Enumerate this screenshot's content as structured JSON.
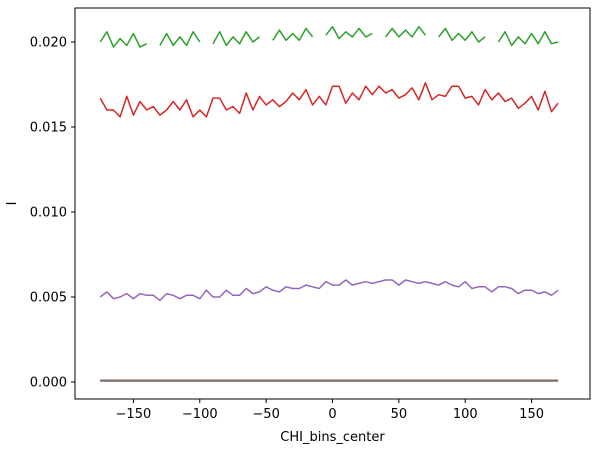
{
  "chart_data": {
    "type": "line",
    "title": "",
    "xlabel": "CHI_bins_center",
    "ylabel": "I",
    "xlim": [
      -194,
      194
    ],
    "ylim": [
      -0.001,
      0.022
    ],
    "x_ticks": [
      -150,
      -100,
      -50,
      0,
      50,
      100,
      150
    ],
    "x_tick_labels": [
      "−150",
      "−100",
      "−50",
      "0",
      "50",
      "100",
      "150"
    ],
    "y_ticks": [
      0.0,
      0.005,
      0.01,
      0.015,
      0.02
    ],
    "y_tick_labels": [
      "0.000",
      "0.005",
      "0.010",
      "0.015",
      "0.020"
    ],
    "grid": false,
    "x": [
      -175,
      -170,
      -165,
      -160,
      -155,
      -150,
      -145,
      -140,
      -135,
      -130,
      -125,
      -120,
      -115,
      -110,
      -105,
      -100,
      -95,
      -90,
      -85,
      -80,
      -75,
      -70,
      -65,
      -60,
      -55,
      -50,
      -45,
      -40,
      -35,
      -30,
      -25,
      -20,
      -15,
      -10,
      -5,
      0,
      5,
      10,
      15,
      20,
      25,
      30,
      35,
      40,
      45,
      50,
      55,
      60,
      65,
      70,
      75,
      80,
      85,
      90,
      95,
      100,
      105,
      110,
      115,
      120,
      125,
      130,
      135,
      140,
      145,
      150,
      155,
      160,
      165,
      170
    ],
    "series": [
      {
        "color": "#2ca02c",
        "values": [
          0.02,
          0.0206,
          0.0197,
          0.0202,
          0.0198,
          0.0205,
          0.0197,
          0.0199,
          null,
          0.0198,
          0.0205,
          0.0198,
          0.0203,
          0.0198,
          0.0206,
          0.02,
          null,
          0.0199,
          0.0206,
          0.0198,
          0.0203,
          0.0199,
          0.0206,
          0.02,
          0.0203,
          null,
          0.0201,
          0.0207,
          0.0201,
          0.0205,
          0.0201,
          0.0208,
          0.0203,
          null,
          0.0204,
          0.0209,
          0.0202,
          0.0206,
          0.0203,
          0.0208,
          0.0203,
          0.0205,
          null,
          0.0203,
          0.0208,
          0.0203,
          0.0207,
          0.0203,
          0.0209,
          0.0204,
          null,
          0.0203,
          0.0208,
          0.0201,
          0.0205,
          0.0201,
          0.0206,
          0.02,
          0.0203,
          null,
          0.02,
          0.0206,
          0.0198,
          0.0203,
          0.0199,
          0.0205,
          0.0199,
          0.0206,
          0.0199,
          0.02
        ]
      },
      {
        "color": "#d62728",
        "values": [
          0.0167,
          0.016,
          0.016,
          0.0156,
          0.0168,
          0.0157,
          0.0165,
          0.016,
          0.0162,
          0.0157,
          0.016,
          0.0165,
          0.016,
          0.0166,
          0.0156,
          0.016,
          0.0156,
          0.0167,
          0.0167,
          0.016,
          0.0162,
          0.0158,
          0.017,
          0.016,
          0.0168,
          0.0163,
          0.0166,
          0.0162,
          0.0165,
          0.017,
          0.0166,
          0.0172,
          0.0163,
          0.0168,
          0.0163,
          0.0174,
          0.0174,
          0.0164,
          0.017,
          0.0166,
          0.0174,
          0.0169,
          0.0174,
          0.017,
          0.0172,
          0.0167,
          0.0169,
          0.0173,
          0.0166,
          0.0176,
          0.0166,
          0.0169,
          0.0168,
          0.0174,
          0.0174,
          0.0167,
          0.0168,
          0.0163,
          0.0172,
          0.0166,
          0.017,
          0.0165,
          0.0167,
          0.0161,
          0.0164,
          0.0168,
          0.016,
          0.0171,
          0.0159,
          0.0164
        ]
      },
      {
        "color": "#9467bd",
        "values": [
          0.005,
          0.0053,
          0.0049,
          0.005,
          0.0052,
          0.0049,
          0.0052,
          0.0051,
          0.0051,
          0.0048,
          0.0052,
          0.0051,
          0.0049,
          0.0051,
          0.0051,
          0.0049,
          0.0054,
          0.005,
          0.005,
          0.0054,
          0.0051,
          0.0051,
          0.0055,
          0.0052,
          0.0053,
          0.0056,
          0.0054,
          0.0053,
          0.0056,
          0.0055,
          0.0055,
          0.0057,
          0.0056,
          0.0055,
          0.0059,
          0.0057,
          0.0057,
          0.006,
          0.0057,
          0.0058,
          0.0059,
          0.0058,
          0.0059,
          0.006,
          0.006,
          0.0057,
          0.006,
          0.0059,
          0.0058,
          0.0059,
          0.0058,
          0.0057,
          0.0059,
          0.0057,
          0.0056,
          0.0059,
          0.0055,
          0.0056,
          0.0056,
          0.0053,
          0.0056,
          0.0056,
          0.0055,
          0.0052,
          0.0054,
          0.0054,
          0.0052,
          0.0053,
          0.0051,
          0.0054
        ]
      },
      {
        "color": "#8c564b",
        "values": [
          0.0001,
          0.0001,
          0.0001,
          0.0001,
          0.0001,
          0.0001,
          0.0001,
          0.0001,
          0.0001,
          0.0001,
          0.0001,
          0.0001,
          0.0001,
          0.0001,
          0.0001,
          0.0001,
          0.0001,
          0.0001,
          0.0001,
          0.0001,
          0.0001,
          0.0001,
          0.0001,
          0.0001,
          0.0001,
          0.0001,
          0.0001,
          0.0001,
          0.0001,
          0.0001,
          0.0001,
          0.0001,
          0.0001,
          0.0001,
          0.0001,
          0.0001,
          0.0001,
          0.0001,
          0.0001,
          0.0001,
          0.0001,
          0.0001,
          0.0001,
          0.0001,
          0.0001,
          0.0001,
          0.0001,
          0.0001,
          0.0001,
          0.0001,
          0.0001,
          0.0001,
          0.0001,
          0.0001,
          0.0001,
          0.0001,
          0.0001,
          0.0001,
          0.0001,
          0.0001,
          0.0001,
          0.0001,
          0.0001,
          0.0001,
          0.0001,
          0.0001,
          0.0001,
          0.0001,
          0.0001,
          0.0001
        ]
      },
      {
        "color": "#7f7f7f",
        "values": [
          5e-05,
          5e-05,
          5e-05,
          5e-05,
          5e-05,
          5e-05,
          5e-05,
          5e-05,
          5e-05,
          5e-05,
          5e-05,
          5e-05,
          5e-05,
          5e-05,
          5e-05,
          5e-05,
          5e-05,
          5e-05,
          5e-05,
          5e-05,
          5e-05,
          5e-05,
          5e-05,
          5e-05,
          5e-05,
          5e-05,
          5e-05,
          5e-05,
          5e-05,
          5e-05,
          5e-05,
          5e-05,
          5e-05,
          5e-05,
          5e-05,
          5e-05,
          5e-05,
          5e-05,
          5e-05,
          5e-05,
          5e-05,
          5e-05,
          5e-05,
          5e-05,
          5e-05,
          5e-05,
          5e-05,
          5e-05,
          5e-05,
          5e-05,
          5e-05,
          5e-05,
          5e-05,
          5e-05,
          5e-05,
          5e-05,
          5e-05,
          5e-05,
          5e-05,
          5e-05,
          5e-05,
          5e-05,
          5e-05,
          5e-05,
          5e-05,
          5e-05,
          5e-05,
          5e-05,
          5e-05,
          5e-05
        ]
      }
    ]
  }
}
